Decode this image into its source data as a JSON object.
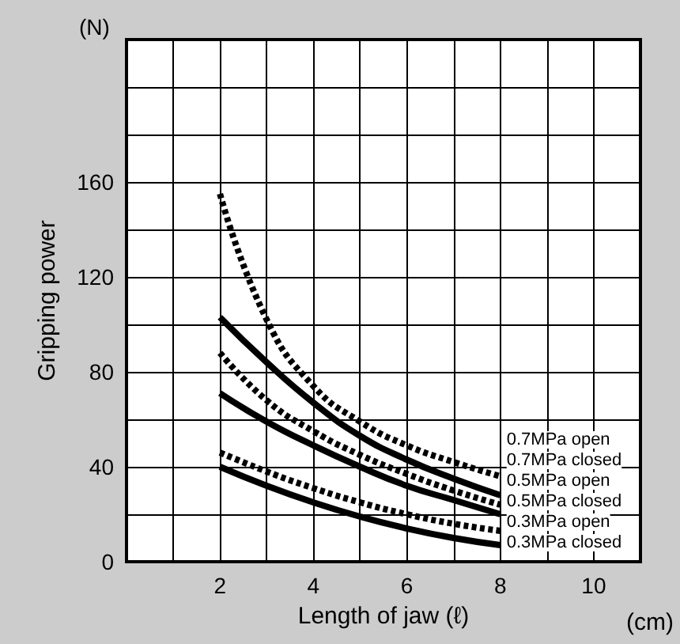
{
  "chart_data": {
    "type": "line",
    "xlabel": "Length of jaw (ℓ)",
    "ylabel": "Gripping power",
    "annotations": [
      "(N)",
      "(cm)"
    ],
    "x": [
      2,
      3,
      4,
      5,
      6,
      7,
      8
    ],
    "series": [
      {
        "name": "0.7MPa open",
        "color": "#000000",
        "line_style": "dashed",
        "values": [
          155,
          102,
          74,
          59,
          49,
          42,
          36
        ]
      },
      {
        "name": "0.7MPa closed",
        "color": "#000000",
        "line_style": "solid",
        "values": [
          103,
          84,
          67,
          53,
          43,
          35,
          28
        ]
      },
      {
        "name": "0.5MPa open",
        "color": "#000000",
        "line_style": "dashed",
        "values": [
          88,
          68,
          55,
          45,
          37,
          30,
          24
        ]
      },
      {
        "name": "0.5MPa closed",
        "color": "#000000",
        "line_style": "solid",
        "values": [
          71,
          59,
          49,
          40,
          32,
          26,
          20
        ]
      },
      {
        "name": "0.3MPa open",
        "color": "#000000",
        "line_style": "dashed",
        "values": [
          46,
          38,
          31,
          25,
          20,
          16,
          13
        ]
      },
      {
        "name": "0.3MPa closed",
        "color": "#000000",
        "line_style": "solid",
        "values": [
          40,
          32,
          25,
          19,
          14,
          10,
          7
        ]
      }
    ],
    "xlim": [
      0,
      11
    ],
    "xticks": [
      {
        "value": 0,
        "label": null
      },
      {
        "value": 1,
        "label": null
      },
      2,
      {
        "value": 3,
        "label": null
      },
      4,
      {
        "value": 5,
        "label": null
      },
      6,
      {
        "value": 7,
        "label": null
      },
      8,
      {
        "value": 9,
        "label": null
      },
      10,
      {
        "value": 11,
        "label": null
      }
    ],
    "ylim": [
      0,
      220
    ],
    "yticks": [
      0,
      {
        "value": 20,
        "label": null
      },
      40,
      {
        "value": 60,
        "label": null
      },
      80,
      {
        "value": 100,
        "label": null
      },
      120,
      {
        "value": 140,
        "label": null
      },
      160,
      {
        "value": 180,
        "label": null
      },
      {
        "value": 200,
        "label": null
      },
      {
        "value": 220,
        "label": null
      }
    ],
    "grid": true,
    "marker": "none",
    "legend": false
  }
}
